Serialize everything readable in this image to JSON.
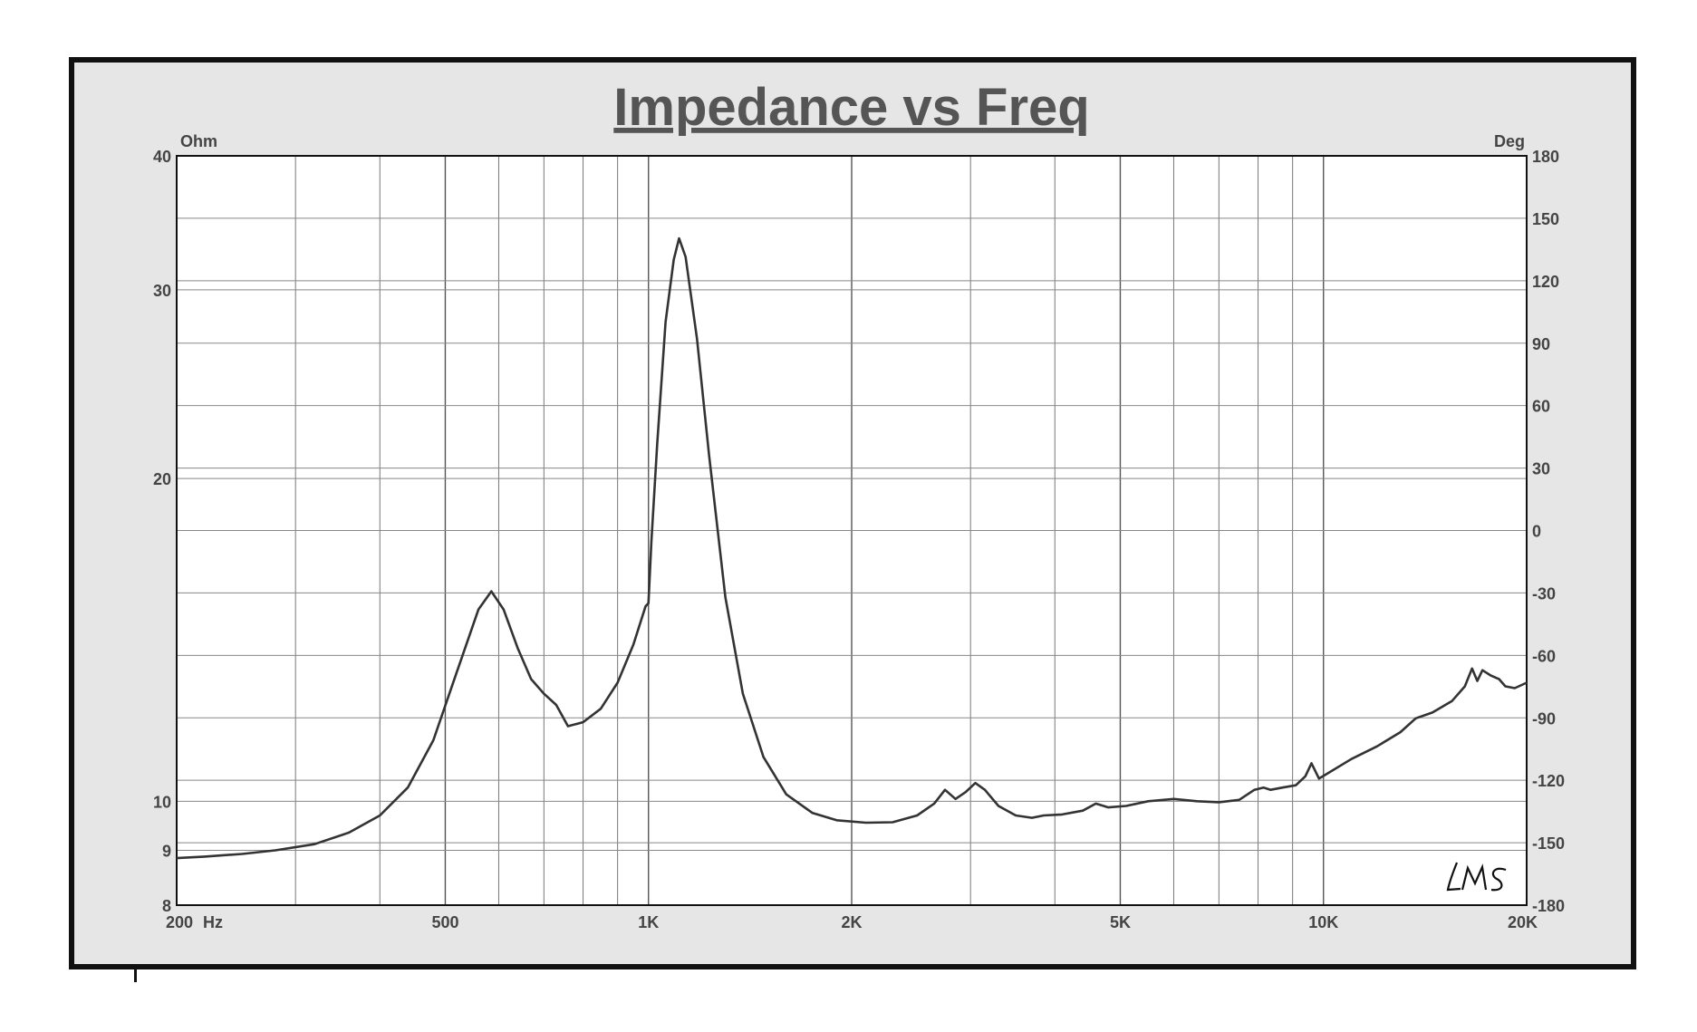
{
  "chart_data": {
    "type": "line",
    "title": "Impedance vs Freq",
    "x_unit_label": "Hz",
    "y_left_label": "Ohm",
    "y_right_label": "Deg",
    "x_scale": "log",
    "y_left_scale": "log",
    "x_range": [
      200,
      20000
    ],
    "y_left_range": [
      8,
      40
    ],
    "y_right_range": [
      -180,
      180
    ],
    "x_tick_labels": [
      {
        "value": 200,
        "label": "200"
      },
      {
        "value": 500,
        "label": "500"
      },
      {
        "value": 1000,
        "label": "1K"
      },
      {
        "value": 2000,
        "label": "2K"
      },
      {
        "value": 5000,
        "label": "5K"
      },
      {
        "value": 10000,
        "label": "10K"
      },
      {
        "value": 20000,
        "label": "20K"
      }
    ],
    "y_left_ticks": [
      {
        "value": 8,
        "label": "8"
      },
      {
        "value": 9,
        "label": "9"
      },
      {
        "value": 10,
        "label": "10"
      },
      {
        "value": 20,
        "label": "20"
      },
      {
        "value": 30,
        "label": "30"
      },
      {
        "value": 40,
        "label": "40"
      }
    ],
    "y_right_ticks": [
      {
        "value": 180,
        "label": "180"
      },
      {
        "value": 150,
        "label": "150"
      },
      {
        "value": 120,
        "label": "120"
      },
      {
        "value": 90,
        "label": "90"
      },
      {
        "value": 60,
        "label": "60"
      },
      {
        "value": 30,
        "label": "30"
      },
      {
        "value": 0,
        "label": "0"
      },
      {
        "value": -30,
        "label": "-30"
      },
      {
        "value": -60,
        "label": "-60"
      },
      {
        "value": -90,
        "label": "-90"
      },
      {
        "value": -120,
        "label": "-120"
      },
      {
        "value": -150,
        "label": "-150"
      },
      {
        "value": -180,
        "label": "-180"
      }
    ],
    "grid": true,
    "watermark": "LMS",
    "series": [
      {
        "axis": "left",
        "points": [
          [
            200,
            8.85
          ],
          [
            220,
            8.88
          ],
          [
            250,
            8.93
          ],
          [
            280,
            9.0
          ],
          [
            320,
            9.12
          ],
          [
            360,
            9.35
          ],
          [
            400,
            9.7
          ],
          [
            440,
            10.3
          ],
          [
            480,
            11.4
          ],
          [
            520,
            13.2
          ],
          [
            560,
            15.1
          ],
          [
            585,
            15.7
          ],
          [
            610,
            15.1
          ],
          [
            640,
            13.9
          ],
          [
            670,
            13.0
          ],
          [
            700,
            12.6
          ],
          [
            730,
            12.3
          ],
          [
            760,
            11.75
          ],
          [
            800,
            11.85
          ],
          [
            850,
            12.2
          ],
          [
            900,
            12.9
          ],
          [
            950,
            14.0
          ],
          [
            990,
            15.2
          ],
          [
            1000,
            15.3
          ],
          [
            1010,
            17.5
          ],
          [
            1030,
            21.5
          ],
          [
            1060,
            28.0
          ],
          [
            1090,
            32.0
          ],
          [
            1110,
            33.5
          ],
          [
            1135,
            32.2
          ],
          [
            1180,
            27.0
          ],
          [
            1230,
            21.0
          ],
          [
            1300,
            15.5
          ],
          [
            1380,
            12.6
          ],
          [
            1480,
            11.0
          ],
          [
            1600,
            10.15
          ],
          [
            1750,
            9.75
          ],
          [
            1900,
            9.6
          ],
          [
            2100,
            9.55
          ],
          [
            2300,
            9.56
          ],
          [
            2500,
            9.7
          ],
          [
            2650,
            9.95
          ],
          [
            2750,
            10.25
          ],
          [
            2850,
            10.05
          ],
          [
            2950,
            10.2
          ],
          [
            3050,
            10.4
          ],
          [
            3150,
            10.25
          ],
          [
            3300,
            9.9
          ],
          [
            3500,
            9.7
          ],
          [
            3700,
            9.65
          ],
          [
            3850,
            9.7
          ],
          [
            4100,
            9.72
          ],
          [
            4400,
            9.8
          ],
          [
            4600,
            9.95
          ],
          [
            4800,
            9.87
          ],
          [
            5100,
            9.9
          ],
          [
            5500,
            10.0
          ],
          [
            6000,
            10.05
          ],
          [
            6500,
            10.0
          ],
          [
            7000,
            9.98
          ],
          [
            7500,
            10.03
          ],
          [
            7900,
            10.25
          ],
          [
            8150,
            10.3
          ],
          [
            8350,
            10.25
          ],
          [
            8700,
            10.3
          ],
          [
            9100,
            10.35
          ],
          [
            9400,
            10.55
          ],
          [
            9600,
            10.85
          ],
          [
            9850,
            10.5
          ],
          [
            10100,
            10.6
          ],
          [
            11000,
            10.95
          ],
          [
            12000,
            11.25
          ],
          [
            13000,
            11.6
          ],
          [
            13700,
            11.95
          ],
          [
            14500,
            12.1
          ],
          [
            15500,
            12.4
          ],
          [
            16200,
            12.8
          ],
          [
            16600,
            13.3
          ],
          [
            16900,
            12.95
          ],
          [
            17200,
            13.25
          ],
          [
            17700,
            13.1
          ],
          [
            18200,
            13.0
          ],
          [
            18600,
            12.8
          ],
          [
            19200,
            12.75
          ],
          [
            20000,
            12.9
          ]
        ]
      }
    ]
  }
}
